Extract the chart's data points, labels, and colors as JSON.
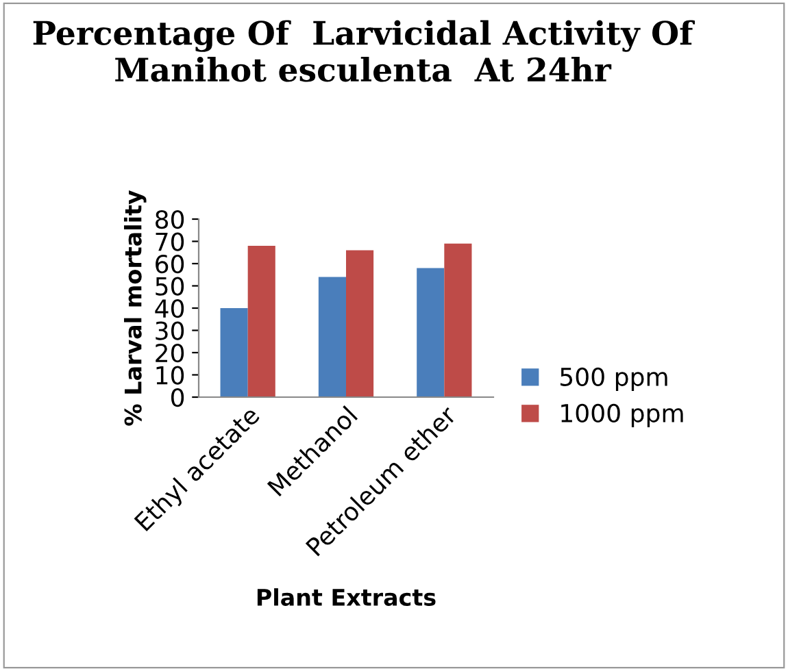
{
  "chart_data": {
    "type": "bar",
    "title": "Percentage Of  Larvicidal Activity Of Manihot esculenta  At 24hr",
    "xlabel": "Plant Extracts",
    "ylabel": "% Larval mortality",
    "categories": [
      "Ethyl acetate",
      "Methanol",
      "Petroleum ether"
    ],
    "series": [
      {
        "name": "500 ppm",
        "color": "#4a7ebb",
        "values": [
          40,
          54,
          58
        ]
      },
      {
        "name": "1000 ppm",
        "color": "#be4b48",
        "values": [
          68,
          66,
          69
        ]
      }
    ],
    "ylim": [
      0,
      80
    ],
    "yticks": [
      0,
      10,
      20,
      30,
      40,
      50,
      60,
      70,
      80
    ],
    "grid": false,
    "legend": "right"
  }
}
